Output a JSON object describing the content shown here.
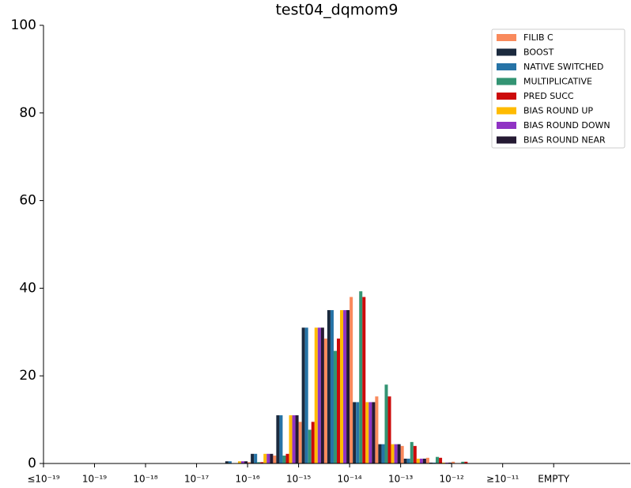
{
  "chart_data": {
    "type": "bar",
    "title": "test04_dqmom9",
    "categories": [
      "≤10⁻¹⁹",
      null,
      "10⁻¹⁹",
      null,
      "10⁻¹⁸",
      null,
      "10⁻¹⁷",
      null,
      "10⁻¹⁶",
      null,
      "10⁻¹⁵",
      null,
      "10⁻¹⁴",
      null,
      "10⁻¹³",
      null,
      "10⁻¹²",
      null,
      "≥10⁻¹¹",
      null,
      "EMPTY",
      null,
      null
    ],
    "series": [
      {
        "name": "FILIB C",
        "color": "#f98a5c",
        "values": [
          0,
          0,
          0,
          0,
          0,
          0,
          0,
          0,
          0.3,
          1.8,
          9.5,
          28.5,
          38,
          15.3,
          4,
          1.3,
          0.4,
          0,
          0,
          0,
          0,
          0,
          0
        ]
      },
      {
        "name": "BOOST",
        "color": "#1b2a3e",
        "values": [
          0,
          0,
          0,
          0,
          0,
          0,
          0,
          0.5,
          2.2,
          11,
          31,
          35,
          14,
          4.4,
          1.1,
          0.2,
          0,
          0,
          0,
          0,
          0,
          0,
          0
        ]
      },
      {
        "name": "NATIVE SWITCHED",
        "color": "#2673a6",
        "values": [
          0,
          0,
          0,
          0,
          0,
          0,
          0,
          0.5,
          2.2,
          11,
          31,
          35,
          14,
          4.4,
          1.1,
          0.2,
          0,
          0,
          0,
          0,
          0,
          0,
          0
        ]
      },
      {
        "name": "MULTIPLICATIVE",
        "color": "#339473",
        "values": [
          0,
          0,
          0,
          0,
          0,
          0,
          0,
          0,
          0.3,
          1.8,
          7.7,
          25.7,
          39.3,
          18,
          4.9,
          1.5,
          0.4,
          0,
          0,
          0,
          0,
          0,
          0
        ]
      },
      {
        "name": "PRED SUCC",
        "color": "#cc0a0a",
        "values": [
          0,
          0,
          0,
          0,
          0,
          0,
          0,
          0,
          0.3,
          2.2,
          9.5,
          28.5,
          38,
          15.3,
          4,
          1.3,
          0.4,
          0,
          0,
          0,
          0,
          0,
          0
        ]
      },
      {
        "name": "BIAS ROUND UP",
        "color": "#ffbb00",
        "values": [
          0,
          0,
          0,
          0,
          0,
          0,
          0,
          0.5,
          2.2,
          11,
          31,
          35,
          14,
          4.4,
          1.1,
          0.2,
          0,
          0,
          0,
          0,
          0,
          0,
          0
        ]
      },
      {
        "name": "BIAS ROUND DOWN",
        "color": "#9033c4",
        "values": [
          0,
          0,
          0,
          0,
          0,
          0,
          0,
          0.5,
          2.2,
          11,
          31,
          35,
          14,
          4.4,
          1.1,
          0.2,
          0,
          0,
          0,
          0,
          0,
          0,
          0
        ]
      },
      {
        "name": "BIAS ROUND NEAR",
        "color": "#251a33",
        "values": [
          0,
          0,
          0,
          0,
          0,
          0,
          0,
          0.5,
          2.2,
          11,
          31,
          35,
          14,
          4.4,
          1.1,
          0.2,
          0,
          0,
          0,
          0,
          0,
          0,
          0
        ]
      }
    ],
    "ylim": [
      0,
      100
    ],
    "yticks": [
      0,
      20,
      40,
      60,
      80,
      100
    ],
    "legend": "upper right"
  }
}
